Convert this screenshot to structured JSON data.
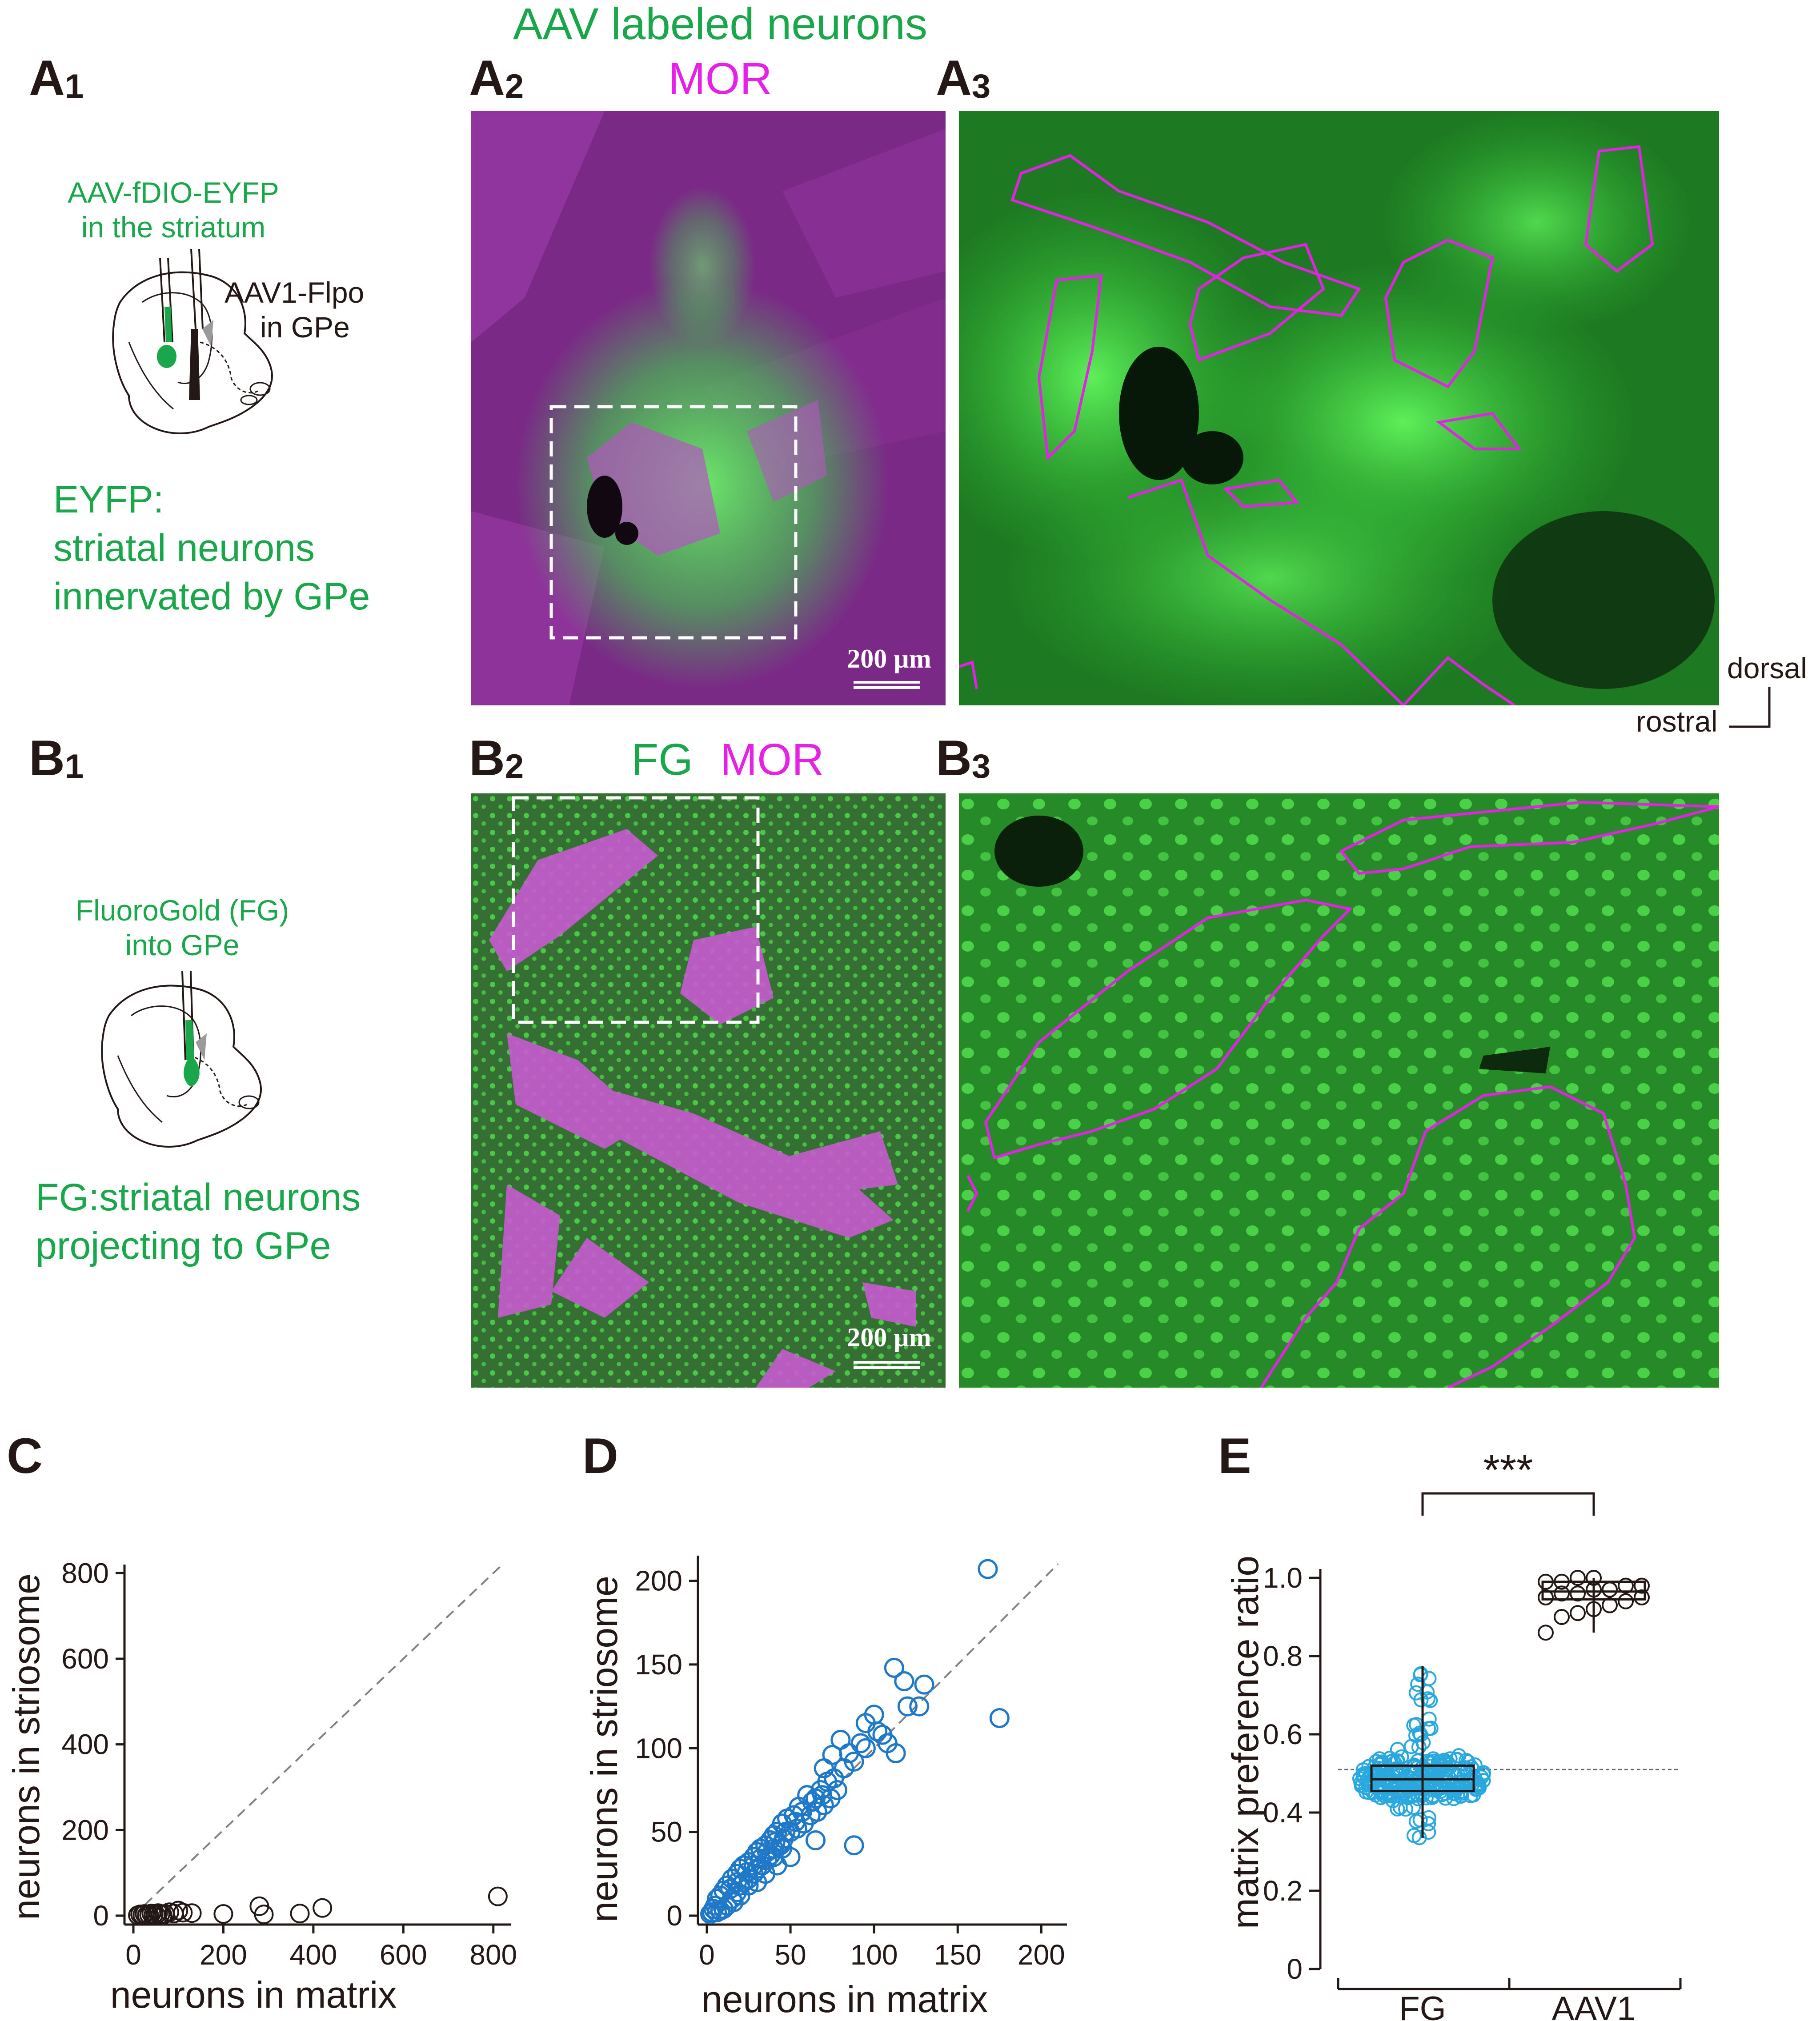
{
  "header": {
    "aav_title": "AAV labeled neurons"
  },
  "panels": {
    "A1": {
      "letter": "A",
      "sub": "1"
    },
    "A2": {
      "letter": "A",
      "sub": "2"
    },
    "A3": {
      "letter": "A",
      "sub": "3"
    },
    "B1": {
      "letter": "B",
      "sub": "1"
    },
    "B2": {
      "letter": "B",
      "sub": "2"
    },
    "B3": {
      "letter": "B",
      "sub": "3"
    },
    "C": {
      "letter": "C"
    },
    "D": {
      "letter": "D"
    },
    "E": {
      "letter": "E"
    }
  },
  "a2": {
    "mor_label": "MOR",
    "scalebar": "200 µm"
  },
  "b2": {
    "fg_label": "FG",
    "mor_label": "MOR",
    "scalebar": "200 µm"
  },
  "a1": {
    "injection_line1": "AAV-fDIO-EYFP",
    "injection_line2": "in the striatum",
    "flpo_line1": "AAV1-Flpo",
    "flpo_line2": "in GPe",
    "desc_line1": "EYFP:",
    "desc_line2": "striatal neurons",
    "desc_line3": "innervated by GPe"
  },
  "b1": {
    "injection_line1": "FluoroGold (FG)",
    "injection_line2": "into GPe",
    "desc_line1": "FG:striatal neurons",
    "desc_line2": "projecting to GPe"
  },
  "orientation": {
    "dorsal": "dorsal",
    "rostral": "rostral"
  },
  "colors": {
    "green": "#1aa64a",
    "magenta": "#e620e6",
    "scatter_blue": "#1f78c8",
    "box_cyan": "#29a8e0"
  },
  "chart_data": [
    {
      "id": "C",
      "type": "scatter",
      "xlabel": "neurons in matrix",
      "ylabel": "neurons in striosome",
      "xlim": [
        0,
        820
      ],
      "ylim": [
        0,
        820
      ],
      "xticks": [
        0,
        200,
        400,
        600,
        800
      ],
      "yticks": [
        0,
        200,
        400,
        600,
        800
      ],
      "identity_line": true,
      "points": [
        [
          10,
          1
        ],
        [
          15,
          3
        ],
        [
          20,
          2
        ],
        [
          25,
          4
        ],
        [
          30,
          1
        ],
        [
          35,
          2
        ],
        [
          40,
          5
        ],
        [
          45,
          3
        ],
        [
          50,
          2
        ],
        [
          55,
          6
        ],
        [
          60,
          3
        ],
        [
          65,
          1
        ],
        [
          70,
          4
        ],
        [
          80,
          8
        ],
        [
          90,
          5
        ],
        [
          100,
          12
        ],
        [
          110,
          7
        ],
        [
          130,
          6
        ],
        [
          200,
          4
        ],
        [
          280,
          22
        ],
        [
          290,
          3
        ],
        [
          370,
          5
        ],
        [
          420,
          18
        ],
        [
          810,
          45
        ]
      ]
    },
    {
      "id": "D",
      "type": "scatter",
      "xlabel": "neurons in matrix",
      "ylabel": "neurons in striosome",
      "xlim": [
        0,
        210
      ],
      "ylim": [
        0,
        215
      ],
      "xticks": [
        0,
        50,
        100,
        150,
        200
      ],
      "yticks": [
        0,
        50,
        100,
        150,
        200
      ],
      "identity_line": true,
      "points": [
        [
          168,
          207
        ],
        [
          175,
          118
        ],
        [
          112,
          148
        ],
        [
          118,
          140
        ],
        [
          130,
          138
        ],
        [
          127,
          125
        ],
        [
          100,
          120
        ],
        [
          95,
          115
        ],
        [
          102,
          110
        ],
        [
          108,
          103
        ],
        [
          113,
          97
        ],
        [
          92,
          103
        ],
        [
          85,
          97
        ],
        [
          80,
          105
        ],
        [
          75,
          96
        ],
        [
          70,
          88
        ],
        [
          72,
          80
        ],
        [
          78,
          75
        ],
        [
          68,
          75
        ],
        [
          65,
          70
        ],
        [
          60,
          72
        ],
        [
          55,
          65
        ],
        [
          52,
          60
        ],
        [
          48,
          58
        ],
        [
          45,
          55
        ],
        [
          42,
          50
        ],
        [
          40,
          48
        ],
        [
          38,
          45
        ],
        [
          35,
          42
        ],
        [
          32,
          40
        ],
        [
          30,
          38
        ],
        [
          28,
          35
        ],
        [
          25,
          32
        ],
        [
          22,
          30
        ],
        [
          20,
          28
        ],
        [
          18,
          25
        ],
        [
          15,
          22
        ],
        [
          12,
          18
        ],
        [
          10,
          15
        ],
        [
          8,
          12
        ],
        [
          6,
          10
        ],
        [
          5,
          6
        ],
        [
          4,
          4
        ],
        [
          3,
          2
        ],
        [
          8,
          3
        ],
        [
          12,
          6
        ],
        [
          15,
          10
        ],
        [
          18,
          14
        ],
        [
          20,
          18
        ],
        [
          22,
          20
        ],
        [
          25,
          22
        ],
        [
          28,
          25
        ],
        [
          30,
          28
        ],
        [
          33,
          30
        ],
        [
          36,
          33
        ],
        [
          38,
          36
        ],
        [
          40,
          40
        ],
        [
          44,
          42
        ],
        [
          46,
          46
        ],
        [
          50,
          50
        ],
        [
          54,
          52
        ],
        [
          58,
          55
        ],
        [
          62,
          60
        ],
        [
          66,
          62
        ],
        [
          70,
          66
        ],
        [
          74,
          70
        ],
        [
          42,
          30
        ],
        [
          50,
          35
        ],
        [
          65,
          45
        ],
        [
          88,
          42
        ],
        [
          30,
          20
        ],
        [
          35,
          25
        ],
        [
          40,
          35
        ],
        [
          45,
          40
        ],
        [
          25,
          18
        ],
        [
          20,
          12
        ],
        [
          16,
          8
        ],
        [
          10,
          4
        ],
        [
          6,
          2
        ],
        [
          2,
          1
        ],
        [
          14,
          16
        ],
        [
          18,
          20
        ],
        [
          24,
          26
        ],
        [
          28,
          30
        ],
        [
          32,
          34
        ],
        [
          36,
          38
        ],
        [
          41,
          44
        ],
        [
          47,
          50
        ],
        [
          53,
          56
        ],
        [
          57,
          62
        ],
        [
          63,
          68
        ],
        [
          69,
          72
        ],
        [
          76,
          82
        ],
        [
          82,
          88
        ],
        [
          88,
          92
        ],
        [
          95,
          100
        ],
        [
          105,
          108
        ],
        [
          120,
          125
        ]
      ]
    },
    {
      "id": "E",
      "type": "box",
      "ylabel": "matrix preference ratio",
      "ylim": [
        0,
        1.0
      ],
      "yticks": [
        0,
        0.2,
        0.4,
        0.6,
        0.8,
        1.0
      ],
      "ytick_labels": [
        "0",
        "0.2",
        "0.4",
        "0.6",
        "0.8",
        "1.0"
      ],
      "reference_line": 0.51,
      "significance": "***",
      "groups": [
        {
          "name": "FG",
          "q1": 0.455,
          "median": 0.485,
          "q3": 0.52,
          "whisker_low": 0.335,
          "whisker_high": 0.775
        },
        {
          "name": "AAV1",
          "q1": 0.945,
          "median": 0.965,
          "q3": 0.99,
          "whisker_low": 0.86,
          "whisker_high": 1.0,
          "points": [
            0.86,
            0.9,
            0.91,
            0.92,
            0.93,
            0.94,
            0.95,
            0.95,
            0.96,
            0.96,
            0.97,
            0.97,
            0.98,
            0.98,
            0.99,
            0.99,
            1.0,
            1.0
          ]
        }
      ]
    }
  ]
}
